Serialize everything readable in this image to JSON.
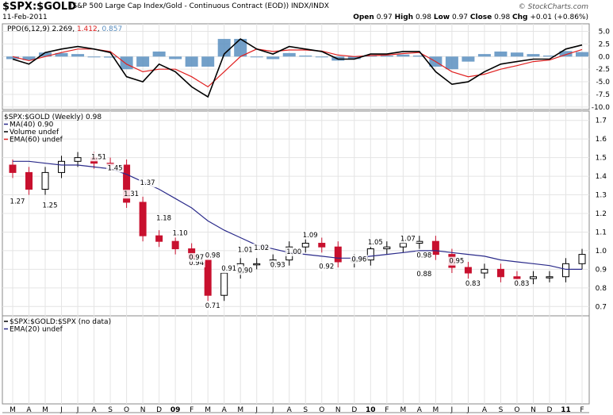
{
  "header": {
    "symbol": "$SPX:$GOLD",
    "description": "(S&P 500 Large Cap Index/Gold - Continuous Contract (EOD)) INDX/INDX",
    "date": "11-Feb-2011",
    "open_label": "Open",
    "open": "0.97",
    "high_label": "High",
    "high": "0.98",
    "low_label": "Low",
    "low": "0.97",
    "close_label": "Close",
    "close": "0.98",
    "chg_label": "Chg",
    "chg": "+0.01 (+0.86%)",
    "logo": "© StockCharts.com"
  },
  "colors": {
    "up": "#000000",
    "down": "#c8102e",
    "ma": "#2a2a8a",
    "ema": "#e02020",
    "histogram": "#5b8fc0",
    "grid": "#e4e4e4"
  },
  "ppo_panel": {
    "legend_prefix": "PPO(6,12,9)",
    "ppo_value": "2.269",
    "signal_value": "1.412",
    "hist_value": "0.857",
    "y_ticks": [
      "5.0",
      "2.5",
      "0.0",
      "-2.5",
      "-5.0",
      "-7.5",
      "-10.0"
    ]
  },
  "price_panel": {
    "legend_main": "$SPX:$GOLD (Weekly) 0.98",
    "legend_ma": "MA(40) 0.90",
    "legend_volume": "Volume undef",
    "legend_ema": "EMA(60) undef",
    "y_ticks": [
      "1.7",
      "1.6",
      "1.5",
      "1.4",
      "1.3",
      "1.2",
      "1.1",
      "1.0",
      "0.9",
      "0.8",
      "0.7"
    ],
    "annotations": [
      "1.27",
      "1.51",
      "1.45",
      "1.25",
      "1.31",
      "1.37",
      "0.98",
      "1.18",
      "1.10",
      "0.94",
      "0.97",
      "0.71",
      "1.01",
      "0.91",
      "1.02",
      "0.90",
      "0.93",
      "1.09",
      "1.00",
      "0.92",
      "1.05",
      "0.96",
      "1.07",
      "0.98",
      "0.88",
      "0.95",
      "0.83",
      "0.83"
    ]
  },
  "bottom_panel": {
    "legend_main": "$SPX:$GOLD:$SPX (no data)",
    "legend_ema": "EMA(20) undef"
  },
  "x_axis": {
    "labels": [
      "M",
      "A",
      "M",
      "J",
      "J",
      "A",
      "S",
      "O",
      "N",
      "D",
      "09",
      "F",
      "M",
      "A",
      "M",
      "J",
      "J",
      "A",
      "S",
      "O",
      "N",
      "D",
      "10",
      "F",
      "M",
      "A",
      "M",
      "J",
      "J",
      "A",
      "S",
      "O",
      "N",
      "D",
      "11",
      "F"
    ]
  },
  "chart_data": {
    "type": "line",
    "title": "$SPX:$GOLD",
    "xlabel": "",
    "ylabel": "",
    "x": [
      "2008-03",
      "2008-04",
      "2008-05",
      "2008-06",
      "2008-07",
      "2008-08",
      "2008-09",
      "2008-10",
      "2008-11",
      "2008-12",
      "2009-01",
      "2009-02",
      "2009-03",
      "2009-04",
      "2009-05",
      "2009-06",
      "2009-07",
      "2009-08",
      "2009-09",
      "2009-10",
      "2009-11",
      "2009-12",
      "2010-01",
      "2010-02",
      "2010-03",
      "2010-04",
      "2010-05",
      "2010-06",
      "2010-07",
      "2010-08",
      "2010-09",
      "2010-10",
      "2010-11",
      "2010-12",
      "2011-01",
      "2011-02"
    ],
    "series": [
      {
        "name": "$SPX:$GOLD (Weekly)",
        "values": [
          1.42,
          1.33,
          1.42,
          1.48,
          1.5,
          1.47,
          1.46,
          1.26,
          1.08,
          1.05,
          1.01,
          0.95,
          0.76,
          0.88,
          0.93,
          0.93,
          0.95,
          1.02,
          1.04,
          1.02,
          0.94,
          0.95,
          1.01,
          1.02,
          1.04,
          1.05,
          0.98,
          0.91,
          0.88,
          0.9,
          0.86,
          0.85,
          0.86,
          0.86,
          0.93,
          0.98
        ]
      },
      {
        "name": "MA(40)",
        "values": [
          1.48,
          1.48,
          1.47,
          1.46,
          1.46,
          1.45,
          1.44,
          1.41,
          1.37,
          1.33,
          1.28,
          1.23,
          1.16,
          1.11,
          1.07,
          1.03,
          1.01,
          0.99,
          0.98,
          0.97,
          0.96,
          0.96,
          0.97,
          0.98,
          0.99,
          1.0,
          1.0,
          0.99,
          0.98,
          0.97,
          0.95,
          0.94,
          0.93,
          0.92,
          0.9,
          0.9
        ]
      }
    ],
    "ylim": [
      0.65,
      1.75
    ],
    "ppo": {
      "ppo": [
        -0.5,
        -1.5,
        0.8,
        1.5,
        2.0,
        1.5,
        0.8,
        -4.0,
        -5.0,
        -1.5,
        -3.0,
        -6.0,
        -8.0,
        0.5,
        3.5,
        1.5,
        0.5,
        2.0,
        1.5,
        1.0,
        -0.5,
        -0.5,
        0.5,
        0.5,
        1.0,
        1.0,
        -3.0,
        -5.5,
        -5.0,
        -3.0,
        -1.5,
        -1.0,
        -0.5,
        -0.5,
        1.5,
        2.3
      ],
      "signal": [
        0.0,
        -0.8,
        0.0,
        0.8,
        1.5,
        1.5,
        1.0,
        -1.5,
        -3.0,
        -2.5,
        -2.5,
        -4.0,
        -6.0,
        -3.0,
        0.0,
        1.5,
        1.0,
        1.3,
        1.3,
        1.1,
        0.3,
        0.0,
        0.2,
        0.3,
        0.6,
        0.8,
        -1.0,
        -3.0,
        -4.0,
        -3.5,
        -2.5,
        -1.8,
        -1.0,
        -0.7,
        0.4,
        1.4
      ],
      "ylim": [
        -10.5,
        6.5
      ]
    }
  }
}
